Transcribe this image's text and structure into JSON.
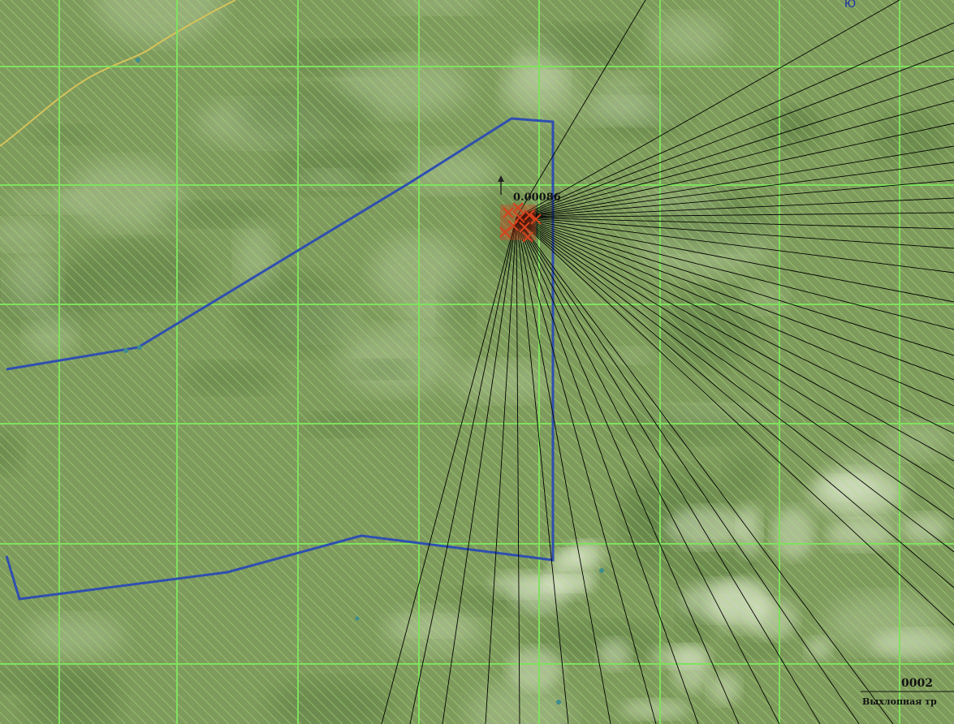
{
  "map": {
    "corner_label": "Ю",
    "point_value": "0.00086",
    "source_code": "0002",
    "source_caption": "Выхлопная тр",
    "colors": {
      "terrain_base": "#7e9a5c",
      "terrain_dark": "#5f7f45",
      "terrain_light": "#c9d8b4",
      "grid": "#7ee25e",
      "boundary": "#2f4fb0",
      "road": "#d6c25a",
      "rays": "#000000",
      "source_marker": "#d9421d",
      "corner_label": "#1a2fb0"
    }
  }
}
